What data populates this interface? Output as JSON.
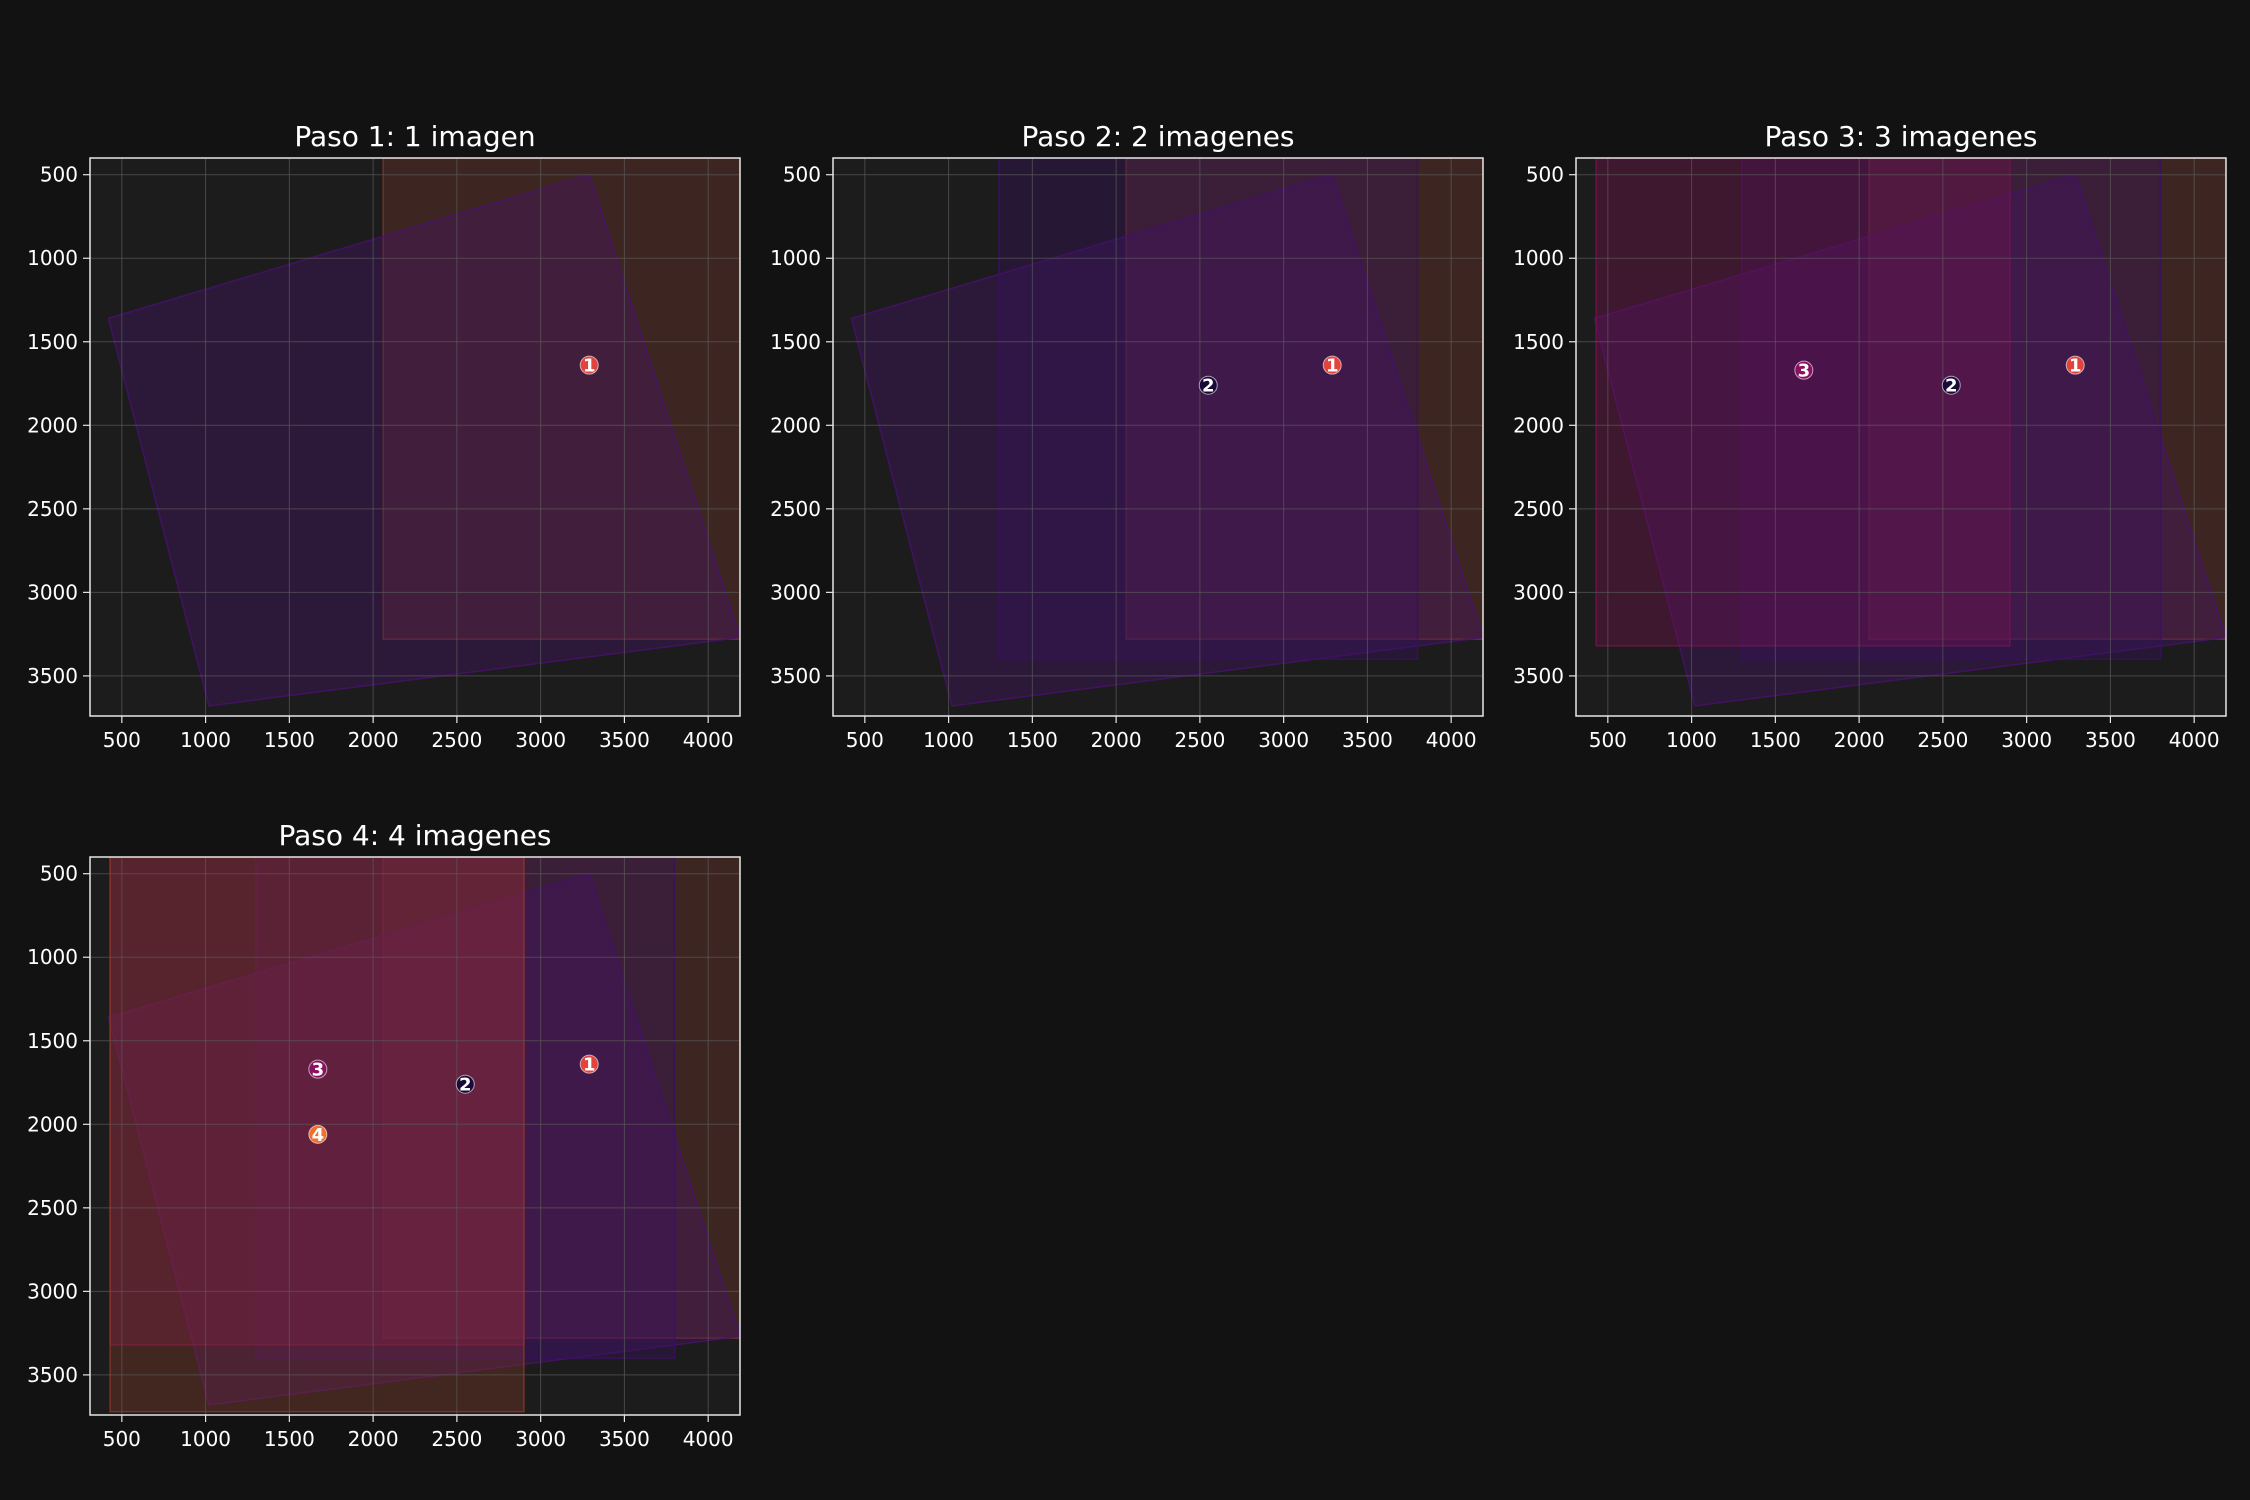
{
  "figure": {
    "background": "#121212",
    "axes_background": "#1c1c1c",
    "spine_color": "#e6e6e6",
    "grid_color": "#5a5a5a"
  },
  "chart_data": [
    {
      "type": "scatter",
      "title": "Paso 1: 1 imagen",
      "xlim": [
        310,
        4190
      ],
      "ylim": [
        3740,
        400
      ],
      "y_inverted": true,
      "xticks": [
        500,
        1000,
        1500,
        2000,
        2500,
        3000,
        3500,
        4000
      ],
      "yticks": [
        500,
        1000,
        1500,
        2000,
        2500,
        3000,
        3500
      ],
      "grid": true,
      "footprints": [
        {
          "id": 1,
          "shape": "rect",
          "x": [
            2060,
            4190
          ],
          "y": [
            400,
            3280
          ],
          "color": "#7a3a2a",
          "alpha": 0.35
        },
        {
          "id": 1,
          "shape": "quad",
          "points": [
            [
              420,
              1360
            ],
            [
              3290,
              500
            ],
            [
              4190,
              3270
            ],
            [
              1020,
              3680
            ]
          ],
          "color": "#4a1070",
          "alpha": 0.35
        }
      ],
      "points": [
        {
          "label": "1",
          "x": 3290,
          "y": 1640,
          "color": "#e0443c"
        }
      ]
    },
    {
      "type": "scatter",
      "title": "Paso 2: 2 imagenes",
      "xlim": [
        310,
        4190
      ],
      "ylim": [
        3740,
        400
      ],
      "y_inverted": true,
      "xticks": [
        500,
        1000,
        1500,
        2000,
        2500,
        3000,
        3500,
        4000
      ],
      "yticks": [
        500,
        1000,
        1500,
        2000,
        2500,
        3000,
        3500
      ],
      "grid": true,
      "footprints": [
        {
          "id": 1,
          "shape": "rect",
          "x": [
            2060,
            4190
          ],
          "y": [
            400,
            3280
          ],
          "color": "#7a3a2a",
          "alpha": 0.35
        },
        {
          "id": 1,
          "shape": "quad",
          "points": [
            [
              420,
              1360
            ],
            [
              3290,
              500
            ],
            [
              4190,
              3270
            ],
            [
              1020,
              3680
            ]
          ],
          "color": "#4a1070",
          "alpha": 0.35
        },
        {
          "id": 2,
          "shape": "rect",
          "x": [
            1300,
            3800
          ],
          "y": [
            400,
            3400
          ],
          "color": "#3a1060",
          "alpha": 0.35
        }
      ],
      "points": [
        {
          "label": "1",
          "x": 3290,
          "y": 1640,
          "color": "#e0443c"
        },
        {
          "label": "2",
          "x": 2550,
          "y": 1760,
          "color": "#1a0a3a"
        }
      ]
    },
    {
      "type": "scatter",
      "title": "Paso 3: 3 imagenes",
      "xlim": [
        310,
        4190
      ],
      "ylim": [
        3740,
        400
      ],
      "y_inverted": true,
      "xticks": [
        500,
        1000,
        1500,
        2000,
        2500,
        3000,
        3500,
        4000
      ],
      "yticks": [
        500,
        1000,
        1500,
        2000,
        2500,
        3000,
        3500
      ],
      "grid": true,
      "footprints": [
        {
          "id": 1,
          "shape": "rect",
          "x": [
            2060,
            4190
          ],
          "y": [
            400,
            3280
          ],
          "color": "#7a3a2a",
          "alpha": 0.35
        },
        {
          "id": 1,
          "shape": "quad",
          "points": [
            [
              420,
              1360
            ],
            [
              3290,
              500
            ],
            [
              4190,
              3270
            ],
            [
              1020,
              3680
            ]
          ],
          "color": "#4a1070",
          "alpha": 0.35
        },
        {
          "id": 2,
          "shape": "rect",
          "x": [
            1300,
            3800
          ],
          "y": [
            400,
            3400
          ],
          "color": "#3a1060",
          "alpha": 0.35
        },
        {
          "id": 3,
          "shape": "rect",
          "x": [
            430,
            2900
          ],
          "y": [
            400,
            3320
          ],
          "color": "#7a1050",
          "alpha": 0.35
        }
      ],
      "points": [
        {
          "label": "1",
          "x": 3290,
          "y": 1640,
          "color": "#e0443c"
        },
        {
          "label": "2",
          "x": 2550,
          "y": 1760,
          "color": "#1a0a3a"
        },
        {
          "label": "3",
          "x": 1670,
          "y": 1670,
          "color": "#8a1060"
        }
      ]
    },
    {
      "type": "scatter",
      "title": "Paso 4: 4 imagenes",
      "xlim": [
        310,
        4190
      ],
      "ylim": [
        3740,
        400
      ],
      "y_inverted": true,
      "xticks": [
        500,
        1000,
        1500,
        2000,
        2500,
        3000,
        3500,
        4000
      ],
      "yticks": [
        500,
        1000,
        1500,
        2000,
        2500,
        3000,
        3500
      ],
      "grid": true,
      "footprints": [
        {
          "id": 1,
          "shape": "rect",
          "x": [
            2060,
            4190
          ],
          "y": [
            400,
            3280
          ],
          "color": "#7a3a2a",
          "alpha": 0.35
        },
        {
          "id": 1,
          "shape": "quad",
          "points": [
            [
              420,
              1360
            ],
            [
              3290,
              500
            ],
            [
              4190,
              3270
            ],
            [
              1020,
              3680
            ]
          ],
          "color": "#4a1070",
          "alpha": 0.35
        },
        {
          "id": 2,
          "shape": "rect",
          "x": [
            1300,
            3800
          ],
          "y": [
            400,
            3400
          ],
          "color": "#3a1060",
          "alpha": 0.35
        },
        {
          "id": 3,
          "shape": "rect",
          "x": [
            430,
            2900
          ],
          "y": [
            400,
            3320
          ],
          "color": "#7a1050",
          "alpha": 0.35
        },
        {
          "id": 4,
          "shape": "rect",
          "x": [
            430,
            2900
          ],
          "y": [
            400,
            3720
          ],
          "color": "#8a3a28",
          "alpha": 0.35
        }
      ],
      "points": [
        {
          "label": "1",
          "x": 3290,
          "y": 1640,
          "color": "#e0443c"
        },
        {
          "label": "2",
          "x": 2550,
          "y": 1760,
          "color": "#1a0a3a"
        },
        {
          "label": "3",
          "x": 1670,
          "y": 1670,
          "color": "#8a1060"
        },
        {
          "label": "4",
          "x": 1670,
          "y": 2060,
          "color": "#f07030"
        }
      ]
    }
  ]
}
